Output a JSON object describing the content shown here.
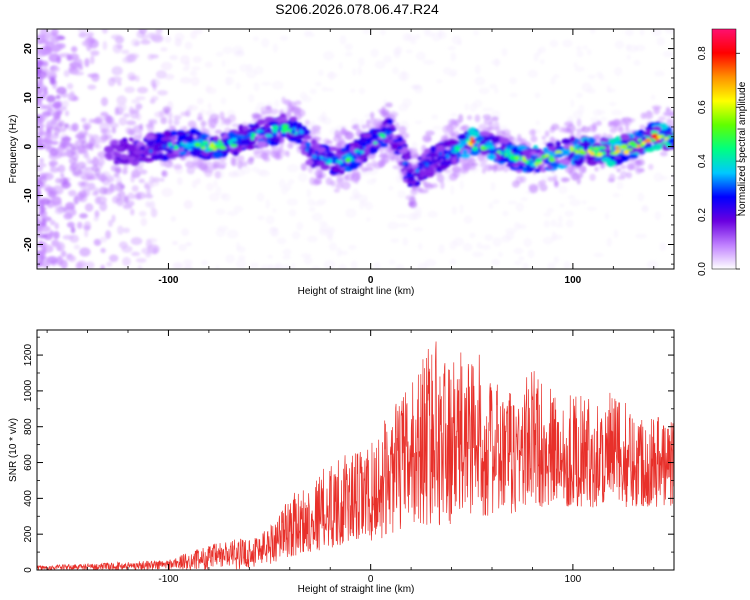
{
  "figure_title": "S206.2026.078.06.47.R24",
  "chart_data": [
    {
      "type": "heatmap",
      "title": "S206.2026.078.06.47.R24",
      "xlabel": "Height of straight line (km)",
      "ylabel": "Frequency (Hz)",
      "xlim": [
        -165,
        150
      ],
      "ylim": [
        -25,
        24
      ],
      "xticks": [
        -100,
        0,
        100
      ],
      "yticks": [
        -20,
        -10,
        0,
        10,
        20
      ],
      "colorbar": {
        "label": "Normalized spectral amplitude",
        "range": [
          0,
          0.89
        ],
        "ticks": [
          0.0,
          0.2,
          0.4,
          0.6,
          0.8
        ],
        "colors": [
          "#ffffff",
          "#c080ff",
          "#6a00e0",
          "#0000ff",
          "#00c8ff",
          "#00ff80",
          "#60ff00",
          "#ffff00",
          "#ff9000",
          "#ff0000",
          "#ff1070"
        ]
      },
      "ridge": {
        "x": [
          -165,
          -140,
          -120,
          -105,
          -90,
          -80,
          -70,
          -60,
          -50,
          -40,
          -35,
          -30,
          -25,
          -20,
          -15,
          -10,
          -5,
          0,
          5,
          10,
          15,
          20,
          25,
          30,
          35,
          40,
          50,
          60,
          70,
          80,
          90,
          100,
          110,
          120,
          130,
          140,
          150
        ],
        "freq": [
          -3,
          -2,
          -1,
          0,
          1,
          0,
          0.5,
          2,
          3,
          4,
          3,
          -1,
          -2,
          -3,
          -3,
          -2,
          -1,
          1,
          2,
          3,
          0,
          -7,
          -4,
          -3,
          -2,
          -1,
          1,
          0,
          -2,
          -3,
          -2,
          -1,
          -1,
          -1,
          0,
          2,
          2
        ],
        "peak_amplitude": [
          0.1,
          0.15,
          0.25,
          0.35,
          0.55,
          0.6,
          0.5,
          0.45,
          0.5,
          0.45,
          0.35,
          0.3,
          0.35,
          0.4,
          0.45,
          0.5,
          0.35,
          0.4,
          0.45,
          0.35,
          0.3,
          0.35,
          0.3,
          0.3,
          0.35,
          0.4,
          0.8,
          0.55,
          0.5,
          0.65,
          0.55,
          0.6,
          0.65,
          0.75,
          0.7,
          0.8,
          0.75
        ]
      }
    },
    {
      "type": "line",
      "xlabel": "Height of straight line (km)",
      "ylabel": "SNR (10 * v/v)",
      "xlim": [
        -165,
        150
      ],
      "ylim": [
        0,
        1340
      ],
      "xticks": [
        -100,
        0,
        100
      ],
      "yticks": [
        0,
        200,
        400,
        600,
        800,
        1000,
        1200
      ],
      "color": "#e8302a",
      "envelope": {
        "x": [
          -165,
          -130,
          -100,
          -90,
          -80,
          -70,
          -60,
          -50,
          -40,
          -30,
          -20,
          -10,
          0,
          10,
          20,
          30,
          40,
          50,
          60,
          70,
          80,
          90,
          100,
          110,
          120,
          130,
          140,
          150
        ],
        "lo": [
          0,
          0,
          0,
          0,
          0,
          0,
          10,
          30,
          70,
          100,
          120,
          150,
          150,
          200,
          250,
          250,
          250,
          300,
          300,
          300,
          350,
          350,
          350,
          350,
          350,
          350,
          350,
          350
        ],
        "hi": [
          25,
          40,
          60,
          100,
          140,
          170,
          180,
          250,
          420,
          480,
          620,
          650,
          700,
          900,
          1050,
          1340,
          1150,
          1300,
          1050,
          1000,
          1150,
          1000,
          1000,
          950,
          1000,
          900,
          900,
          850
        ]
      }
    }
  ]
}
